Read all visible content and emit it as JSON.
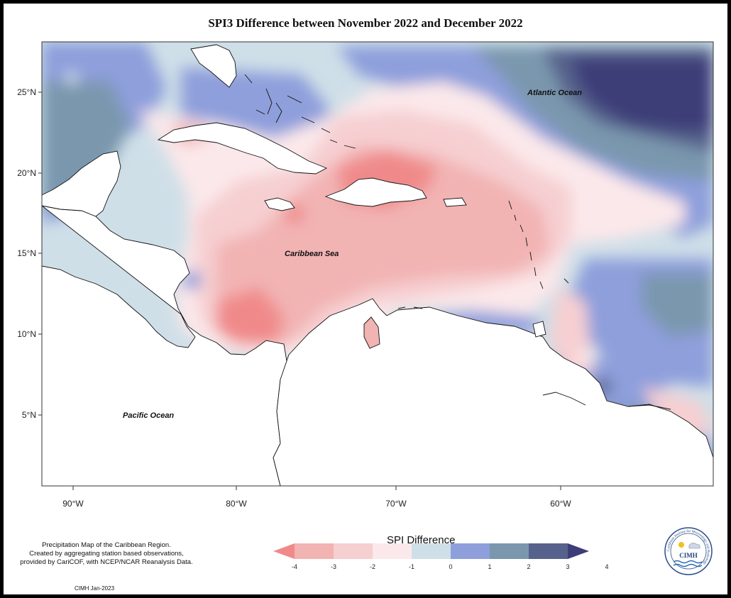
{
  "title": "SPI3 Difference between November 2022 and December 2022",
  "map": {
    "region": "Caribbean",
    "axes": {
      "lat_ticks": [
        "25°N",
        "20°N",
        "15°N",
        "10°N",
        "5°N"
      ],
      "lon_ticks": [
        "90°W",
        "80°W",
        "70°W",
        "60°W"
      ]
    },
    "labels": {
      "atlantic": "Atlantic Ocean",
      "caribbean": "Caribbean Sea",
      "pacific": "Pacific Ocean"
    }
  },
  "legend": {
    "title": "SPI Difference",
    "tick_labels": [
      "-4",
      "-3",
      "-2",
      "-1",
      "0",
      "1",
      "2",
      "3",
      "4"
    ],
    "colors": [
      "#f08a8a",
      "#f2b3b3",
      "#f6cfd1",
      "#fbe8ea",
      "#cfdfe8",
      "#8e9fdb",
      "#7a97ae",
      "#56628c",
      "#3e3d78"
    ]
  },
  "notes": {
    "line1": "Precipitation Map of the Caribbean Region.",
    "line2": "Created by aggregating station based observations,",
    "line3": "provided by CariCOF, with NCEP/NCAR Reanalysis Data.",
    "credit": "CIMH Jan-2023"
  },
  "logo": {
    "acronym": "CIMH",
    "ring_text": "Caribbean Institute for Meteorology and Hydrology"
  }
}
